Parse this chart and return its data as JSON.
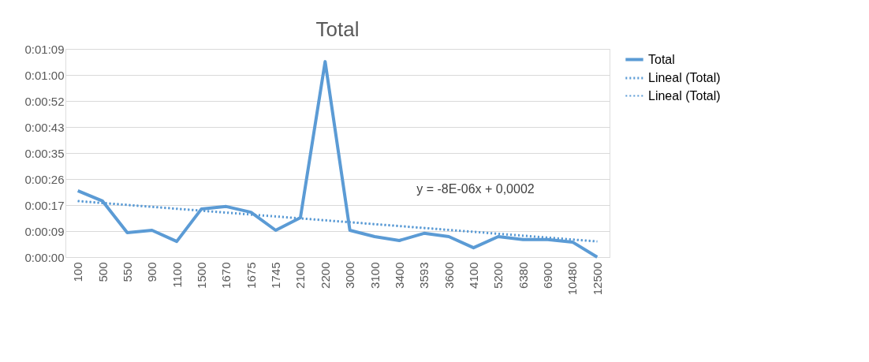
{
  "chart_data": {
    "type": "line",
    "title": "Total",
    "categories": [
      "100",
      "500",
      "550",
      "900",
      "1100",
      "1500",
      "1670",
      "1675",
      "1745",
      "2100",
      "2200",
      "3000",
      "3100",
      "3400",
      "3593",
      "3600",
      "4100",
      "5200",
      "6380",
      "6900",
      "10480",
      "12500"
    ],
    "series": [
      {
        "name": "Total",
        "color": "#5b9bd5",
        "line_style": "solid",
        "values": [
          22.0,
          18.6,
          8.1,
          8.9,
          5.2,
          16.0,
          16.8,
          14.9,
          8.9,
          13.1,
          64.9,
          8.9,
          6.8,
          5.5,
          7.9,
          6.8,
          3.1,
          6.8,
          5.8,
          5.8,
          5.0,
          0
        ]
      },
      {
        "name": "Lineal (Total)",
        "type": "line",
        "color": "#5b9bd5",
        "line_style": "dotted",
        "x": [
          "100",
          "12500"
        ],
        "values": [
          18.6,
          5.2
        ]
      },
      {
        "name": "Lineal (Total)",
        "type": "line",
        "color": "#5b9bd5",
        "line_style": "dotted",
        "x": [
          "100",
          "12500"
        ],
        "values": [
          18.6,
          5.2
        ]
      }
    ],
    "ylim": [
      0,
      69.12
    ],
    "yticks": [
      {
        "value": 0,
        "label": "0:00:00"
      },
      {
        "value": 8.64,
        "label": "0:00:09"
      },
      {
        "value": 17.28,
        "label": "0:00:17"
      },
      {
        "value": 25.92,
        "label": "0:00:26"
      },
      {
        "value": 34.56,
        "label": "0:00:35"
      },
      {
        "value": 43.2,
        "label": "0:00:43"
      },
      {
        "value": 51.84,
        "label": "0:00:52"
      },
      {
        "value": 60.48,
        "label": "0:01:00"
      },
      {
        "value": 69.12,
        "label": "0:01:09"
      }
    ],
    "annotations": [
      "y = -8E-06x + 0,0002"
    ],
    "grid": "y",
    "legend": "right",
    "marker": "none"
  }
}
